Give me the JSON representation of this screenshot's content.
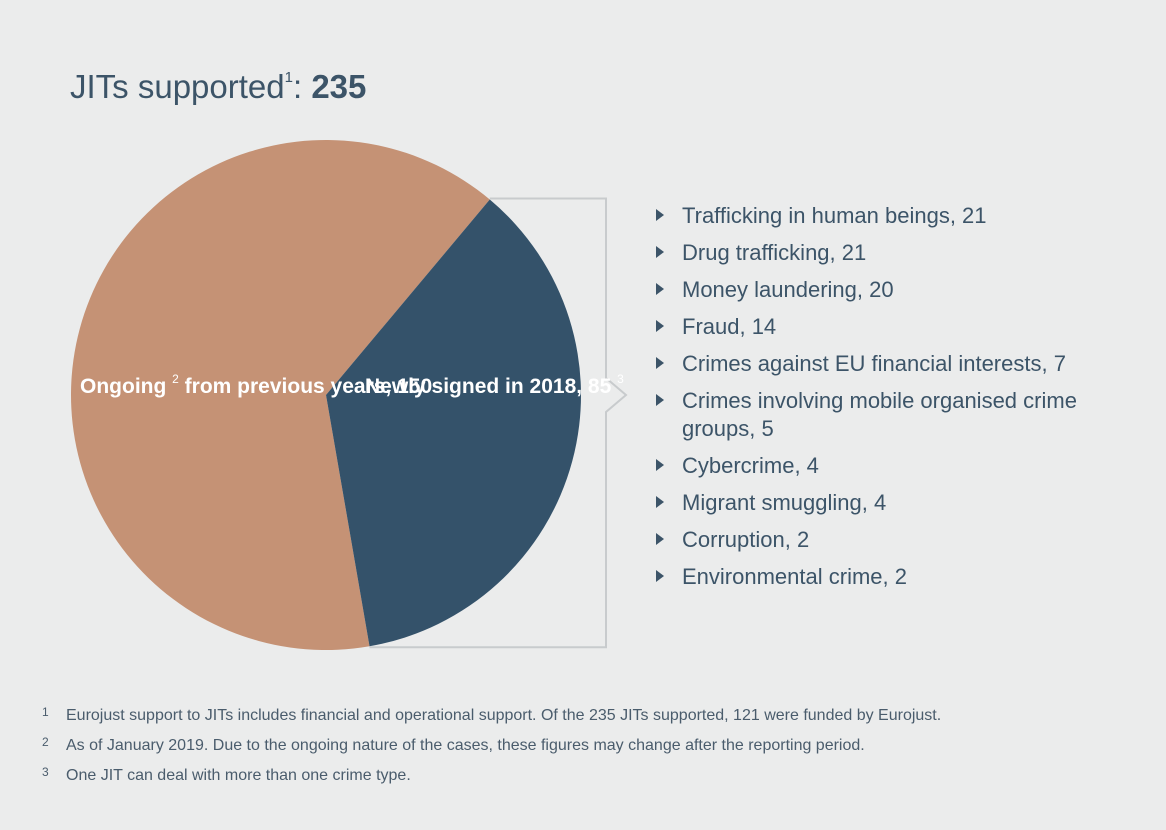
{
  "title": {
    "text": "JITs supported",
    "marker": "1",
    "separator": ": ",
    "total": "235"
  },
  "chart_data": {
    "type": "pie",
    "total": 235,
    "slices": [
      {
        "label": "Ongoing",
        "marker": "2",
        "label_rest": " from previous years, 150",
        "value": 150,
        "color": "#c59275"
      },
      {
        "label": "Newly signed in 2018, 85",
        "marker": "3",
        "value": 85,
        "color": "#34526a"
      }
    ],
    "breakdown_of": "Newly signed in 2018",
    "breakdown": [
      {
        "label": "Trafficking in human beings, 21",
        "value": 21
      },
      {
        "label": "Drug trafficking, 21",
        "value": 21
      },
      {
        "label": "Money laundering, 20",
        "value": 20
      },
      {
        "label": "Fraud, 14",
        "value": 14
      },
      {
        "label": "Crimes against EU financial interests, 7",
        "value": 7
      },
      {
        "label": "Crimes involving mobile organised crime groups, 5",
        "value": 5
      },
      {
        "label": "Cybercrime, 4",
        "value": 4
      },
      {
        "label": "Migrant smuggling, 4",
        "value": 4
      },
      {
        "label": "Corruption, 2",
        "value": 2
      },
      {
        "label": "Environmental crime, 2",
        "value": 2
      }
    ]
  },
  "footnotes": [
    {
      "num": "1",
      "text": "Eurojust support to JITs includes financial and operational support. Of the 235 JITs supported, 121 were funded by Eurojust."
    },
    {
      "num": "2",
      "text": "As of January 2019. Due to the ongoing nature of the cases, these figures may change after the reporting period."
    },
    {
      "num": "3",
      "text": "One JIT can deal with more than one crime type."
    }
  ]
}
